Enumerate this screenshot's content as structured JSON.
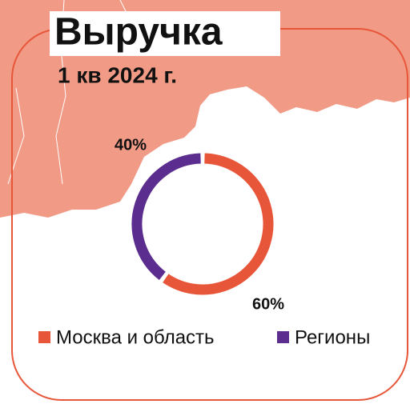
{
  "chart_data": {
    "type": "donut",
    "title": "Выручка",
    "subtitle": "1 кв 2024 г.",
    "categories": [
      "Москва и область",
      "Регионы"
    ],
    "values": [
      60,
      40
    ],
    "value_labels": [
      "60%",
      "40%"
    ],
    "colors": [
      "#e8563a",
      "#5b2d8e"
    ]
  }
}
